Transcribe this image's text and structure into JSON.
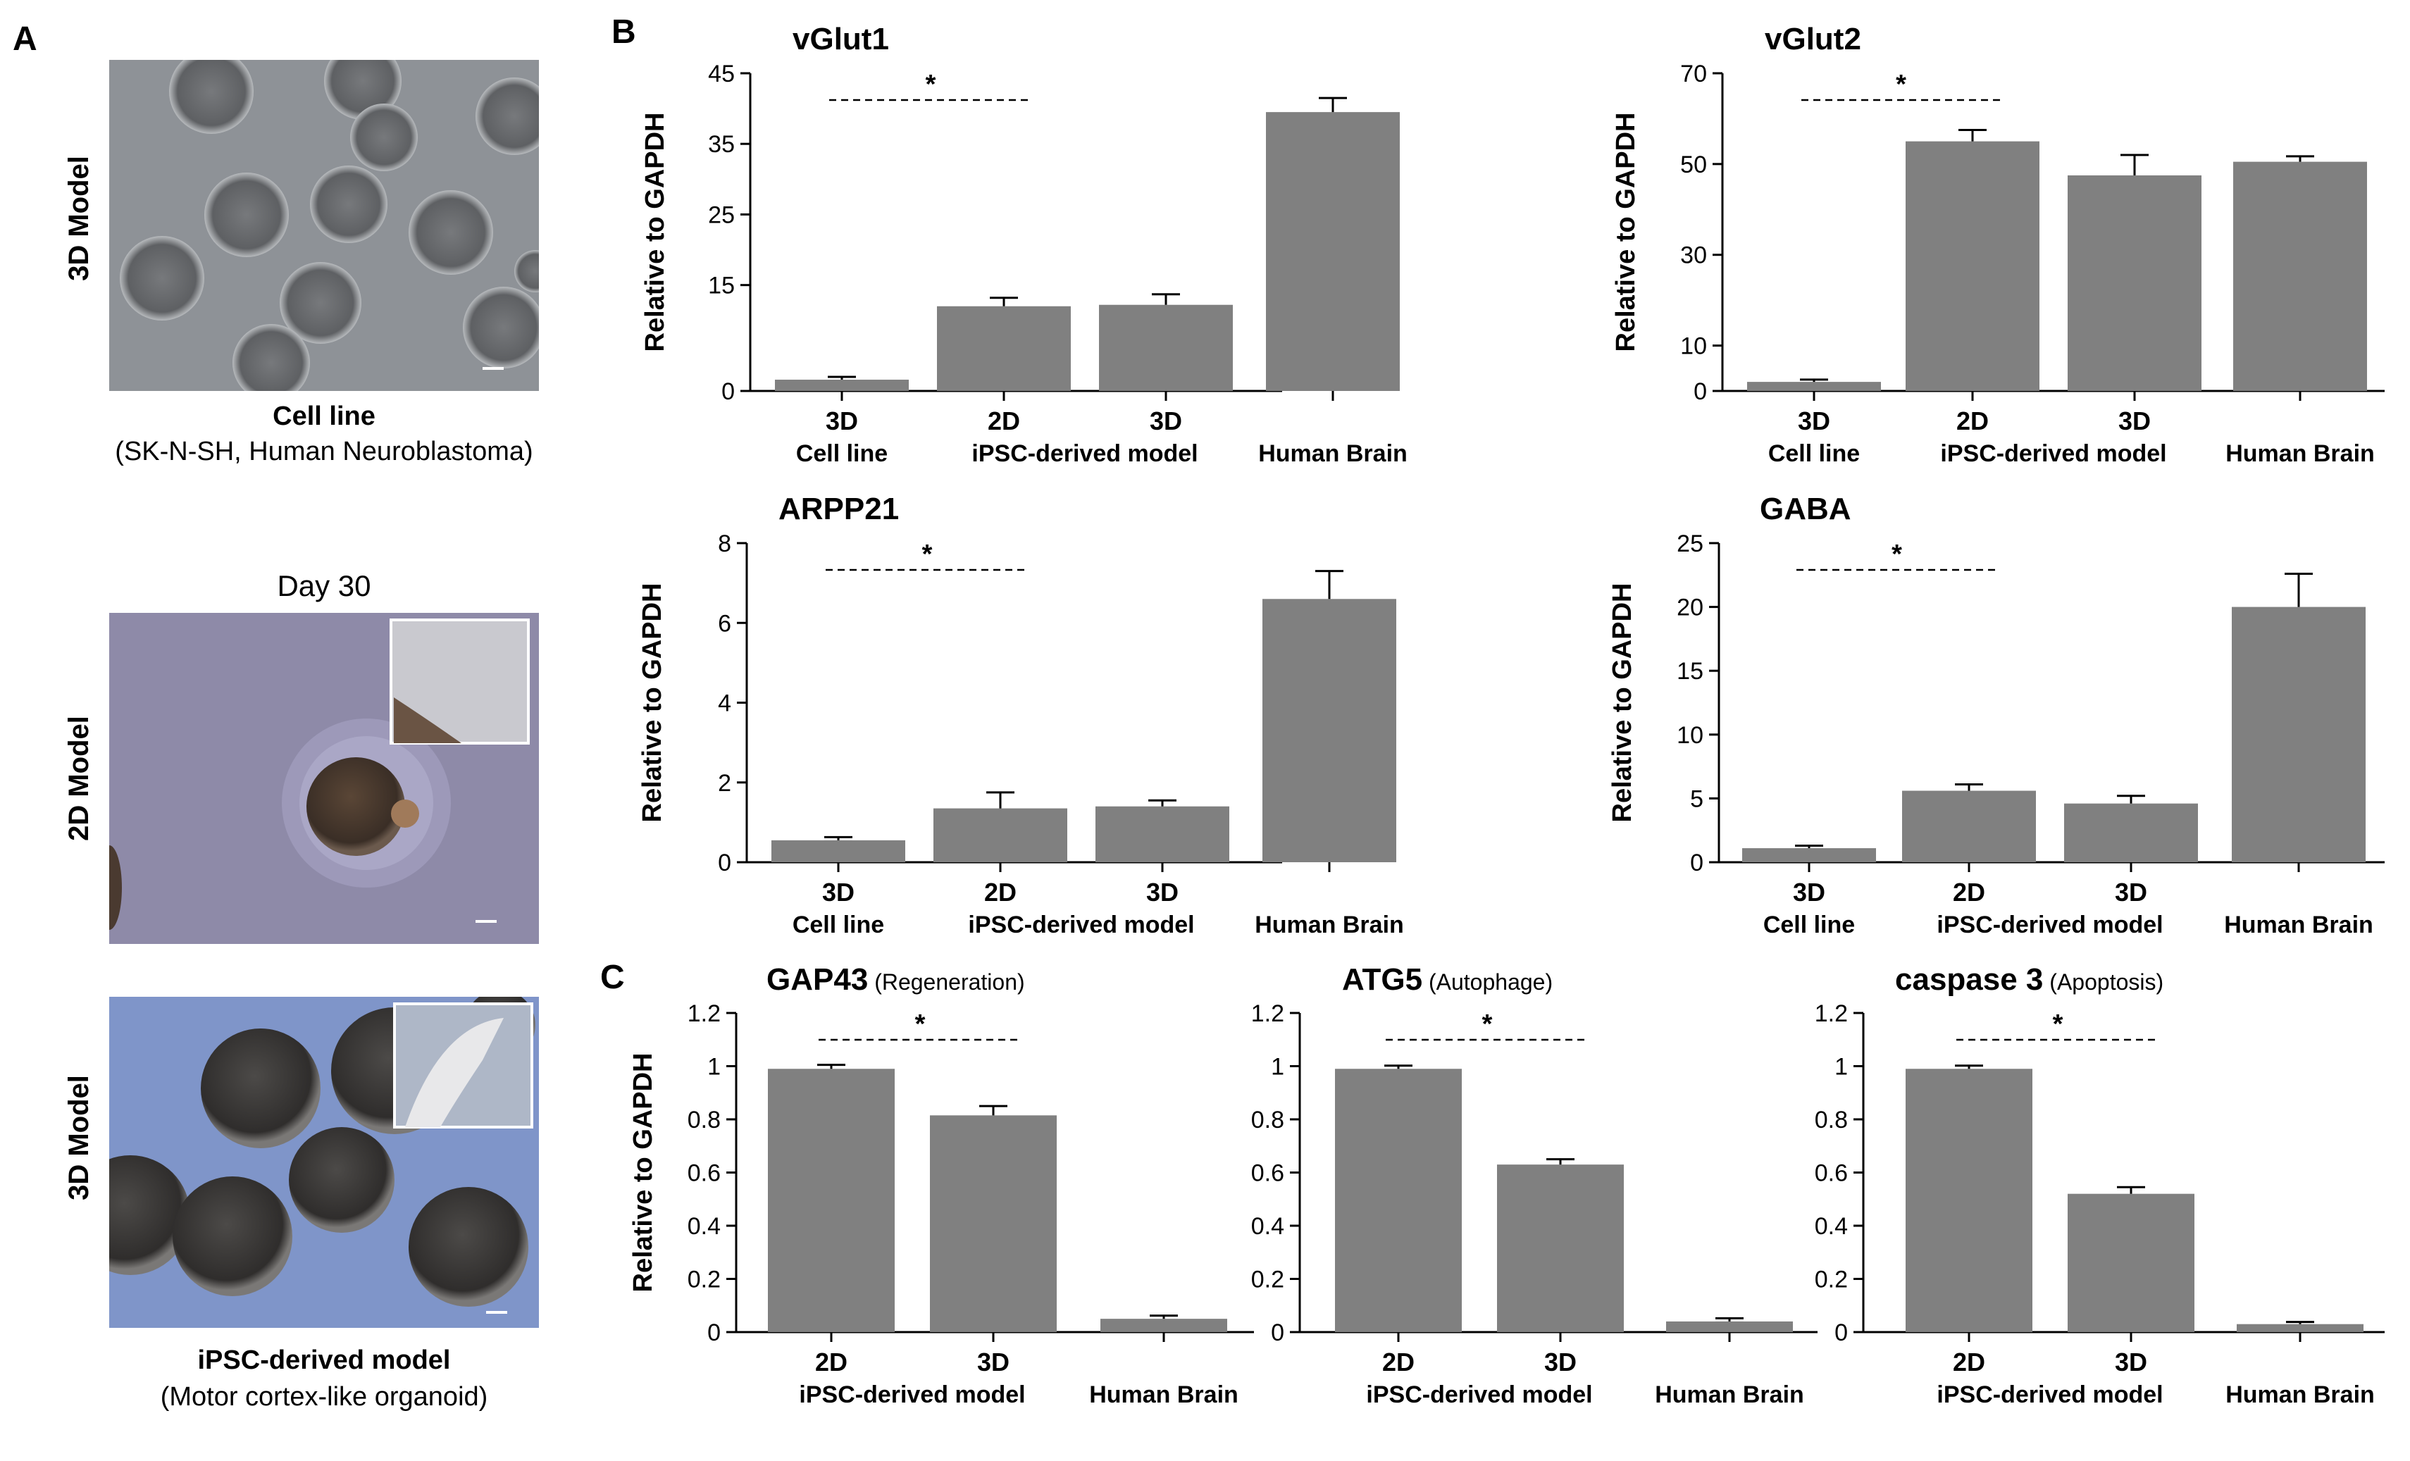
{
  "panel_a": {
    "letter": "A",
    "top_row_label": "3D Model",
    "top_caption_bold": "Cell line",
    "top_caption": "(SK-N-SH, Human Neuroblastoma)",
    "day_label": "Day 30",
    "mid_row_label": "2D Model",
    "bottom_row_label": "3D Model",
    "bottom_caption_bold": "iPSC-derived model",
    "bottom_caption": "(Motor cortex-like organoid)"
  },
  "panel_b": {
    "letter": "B"
  },
  "panel_c": {
    "letter": "C"
  },
  "colors": {
    "bar": "#808080",
    "text": "#000000"
  },
  "chart_data": [
    {
      "id": "vglut1",
      "type": "bar",
      "title": "vGlut1",
      "subtitle": "",
      "ylabel": "Relative to GAPDH",
      "ylim": [
        0,
        45
      ],
      "yticks": [
        "0",
        "15",
        "25",
        "35",
        "45"
      ],
      "categories": [
        "3D",
        "2D",
        "3D",
        "Human Brain"
      ],
      "groups": [
        {
          "label": "Cell line",
          "from": 0,
          "to": 0
        },
        {
          "label": "iPSC-derived model",
          "from": 1,
          "to": 2
        }
      ],
      "values": [
        1.6,
        12,
        12.2,
        39.5
      ],
      "errors": [
        0.4,
        1.2,
        1.5,
        2.0
      ],
      "significance": {
        "from": 0,
        "to": 1,
        "label": "*"
      }
    },
    {
      "id": "vglut2",
      "type": "bar",
      "title": "vGlut2",
      "subtitle": "",
      "ylabel": "Relative to GAPDH",
      "ylim": [
        0,
        70
      ],
      "yticks": [
        "0",
        "10",
        "30",
        "50",
        "70"
      ],
      "categories": [
        "3D",
        "2D",
        "3D",
        "Human Brain"
      ],
      "groups": [
        {
          "label": "Cell line",
          "from": 0,
          "to": 0
        },
        {
          "label": "iPSC-derived model",
          "from": 1,
          "to": 2
        }
      ],
      "values": [
        2,
        55,
        47.5,
        50.5
      ],
      "errors": [
        0.5,
        2.5,
        4.5,
        1.2
      ],
      "significance": {
        "from": 0,
        "to": 1,
        "label": "*"
      }
    },
    {
      "id": "arpp21",
      "type": "bar",
      "title": "ARPP21",
      "subtitle": "",
      "ylabel": "Relative to GAPDH",
      "ylim": [
        0,
        8
      ],
      "yticks": [
        "0",
        "2",
        "4",
        "6",
        "8"
      ],
      "categories": [
        "3D",
        "2D",
        "3D",
        "Human Brain"
      ],
      "groups": [
        {
          "label": "Cell line",
          "from": 0,
          "to": 0
        },
        {
          "label": "iPSC-derived model",
          "from": 1,
          "to": 2
        }
      ],
      "values": [
        0.55,
        1.35,
        1.4,
        6.6
      ],
      "errors": [
        0.08,
        0.4,
        0.15,
        0.7
      ],
      "significance": {
        "from": 0,
        "to": 1,
        "label": "*"
      }
    },
    {
      "id": "gaba",
      "type": "bar",
      "title": "GABA",
      "subtitle": "",
      "ylabel": "Relative to GAPDH",
      "ylim": [
        0,
        25
      ],
      "yticks": [
        "0",
        "5",
        "10",
        "15",
        "20",
        "25"
      ],
      "categories": [
        "3D",
        "2D",
        "3D",
        "Human Brain"
      ],
      "groups": [
        {
          "label": "Cell line",
          "from": 0,
          "to": 0
        },
        {
          "label": "iPSC-derived model",
          "from": 1,
          "to": 2
        }
      ],
      "values": [
        1.1,
        5.6,
        4.6,
        20
      ],
      "errors": [
        0.2,
        0.5,
        0.6,
        2.6
      ],
      "significance": {
        "from": 0,
        "to": 1,
        "label": "*"
      }
    },
    {
      "id": "gap43",
      "type": "bar",
      "title": "GAP43",
      "subtitle": "(Regeneration)",
      "ylabel": "Relative to GAPDH",
      "ylim": [
        0,
        1.2
      ],
      "yticks": [
        "0",
        "0.2",
        "0.4",
        "0.6",
        "0.8",
        "1",
        "1.2"
      ],
      "categories": [
        "2D",
        "3D",
        "Human Brain"
      ],
      "groups": [
        {
          "label": "iPSC-derived model",
          "from": 0,
          "to": 1
        }
      ],
      "values": [
        0.99,
        0.815,
        0.05
      ],
      "errors": [
        0.015,
        0.035,
        0.012
      ],
      "significance": {
        "from": 0,
        "to": 1,
        "label": "*"
      }
    },
    {
      "id": "atg5",
      "type": "bar",
      "title": "ATG5",
      "subtitle": "(Autophage)",
      "ylabel": "",
      "ylim": [
        0,
        1.2
      ],
      "yticks": [
        "0",
        "0.2",
        "0.4",
        "0.6",
        "0.8",
        "1",
        "1.2"
      ],
      "categories": [
        "2D",
        "3D",
        "Human Brain"
      ],
      "groups": [
        {
          "label": "iPSC-derived model",
          "from": 0,
          "to": 1
        }
      ],
      "values": [
        0.99,
        0.63,
        0.04
      ],
      "errors": [
        0.012,
        0.02,
        0.012
      ],
      "significance": {
        "from": 0,
        "to": 1,
        "label": "*"
      }
    },
    {
      "id": "casp3",
      "type": "bar",
      "title": "caspase 3",
      "subtitle": "(Apoptosis)",
      "ylabel": "",
      "ylim": [
        0,
        1.2
      ],
      "yticks": [
        "0",
        "0.2",
        "0.4",
        "0.6",
        "0.8",
        "1",
        "1.2"
      ],
      "categories": [
        "2D",
        "3D",
        "Human Brain"
      ],
      "groups": [
        {
          "label": "iPSC-derived model",
          "from": 0,
          "to": 1
        }
      ],
      "values": [
        0.99,
        0.52,
        0.03
      ],
      "errors": [
        0.012,
        0.025,
        0.008
      ],
      "significance": {
        "from": 0,
        "to": 1,
        "label": "*"
      }
    }
  ]
}
